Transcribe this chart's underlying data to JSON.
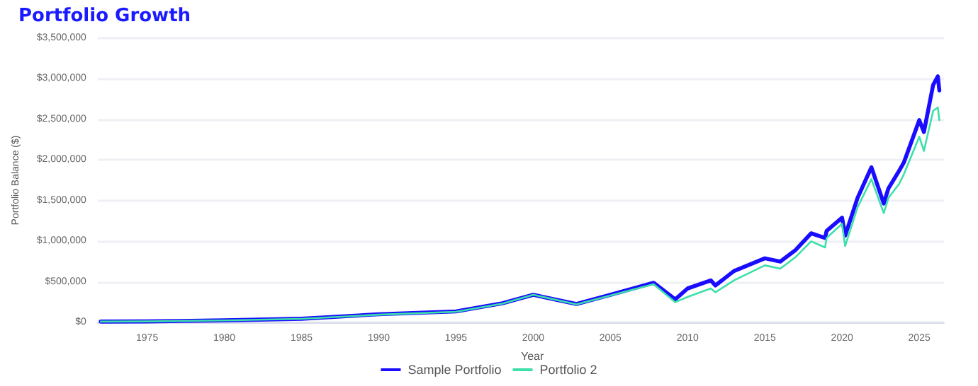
{
  "chart_data": {
    "type": "line",
    "title": "Portfolio Growth",
    "xlabel": "Year",
    "ylabel": "Portfolio Balance ($)",
    "x": [
      1972,
      1975,
      1980,
      1985,
      1990,
      1995,
      1998,
      2000,
      2002.8,
      2005,
      2007.8,
      2009.2,
      2010,
      2011.5,
      2011.8,
      2013,
      2015,
      2016,
      2017,
      2018,
      2018.9,
      2019,
      2020,
      2020.2,
      2021,
      2021.9,
      2022.7,
      2023,
      2023.7,
      2024,
      2025,
      2025.3,
      2025.9,
      2026.2,
      2026.3
    ],
    "series": [
      {
        "name": "Sample Portfolio",
        "color": "#1a0dff",
        "values": [
          10000,
          12000,
          25000,
          45000,
          100000,
          135000,
          235000,
          340000,
          226000,
          340000,
          487000,
          284000,
          418000,
          517000,
          455000,
          632000,
          789000,
          749000,
          893000,
          1097000,
          1039000,
          1126000,
          1289000,
          1068000,
          1532000,
          1910000,
          1463000,
          1649000,
          1869000,
          1968000,
          2490000,
          2345000,
          2925000,
          3030000,
          2856000
        ]
      },
      {
        "name": "Portfolio 2",
        "color": "#3de0a8",
        "values": [
          10000,
          12000,
          24000,
          43000,
          95000,
          130000,
          230000,
          340000,
          222000,
          330000,
          470000,
          249000,
          313000,
          418000,
          371000,
          517000,
          702000,
          662000,
          806000,
          998000,
          923000,
          1039000,
          1214000,
          940000,
          1416000,
          1764000,
          1346000,
          1532000,
          1706000,
          1823000,
          2286000,
          2112000,
          2606000,
          2647000,
          2490000
        ]
      }
    ],
    "xlim": [
      1971.8,
      2026.6
    ],
    "xticks": [
      1975,
      1980,
      1985,
      1990,
      1995,
      2000,
      2005,
      2010,
      2015,
      2020,
      2025
    ],
    "ylim": [
      0,
      3500000
    ],
    "yticks": [
      {
        "value": 0,
        "label": "$0"
      },
      {
        "value": 500000,
        "label": "$500,000"
      },
      {
        "value": 1000000,
        "label": "$1,000,000"
      },
      {
        "value": 1500000,
        "label": "$1,500,000"
      },
      {
        "value": 2000000,
        "label": "$2,000,000"
      },
      {
        "value": 2500000,
        "label": "$2,500,000"
      },
      {
        "value": 3000000,
        "label": "$3,000,000"
      },
      {
        "value": 3500000,
        "label": "$3,500,000"
      }
    ],
    "grid": "y",
    "legend": "bottom",
    "marker": "none",
    "line_style": "solid"
  }
}
